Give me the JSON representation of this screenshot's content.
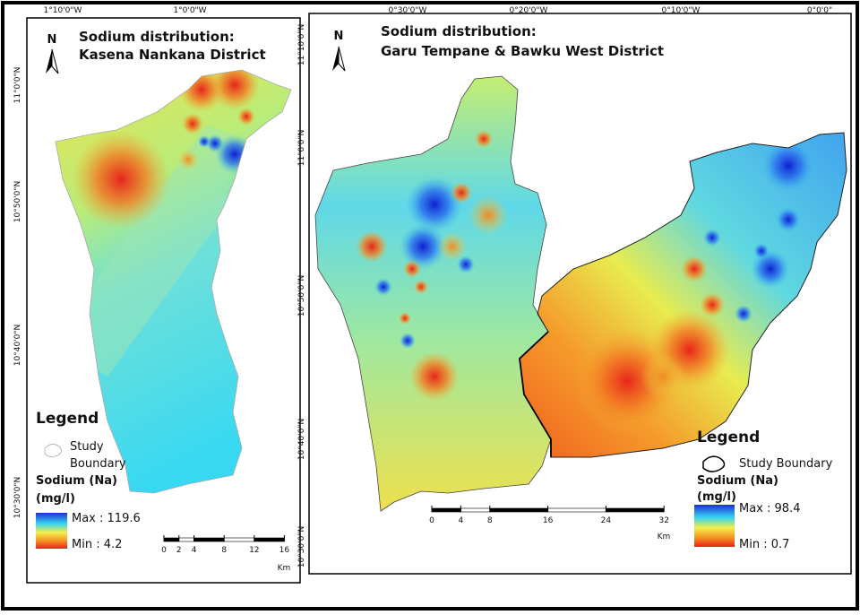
{
  "left_map": {
    "north": "N",
    "title": "Sodium distribution:",
    "subtitle": "Kasena Nankana District",
    "lon_labels": [
      "1°10'0\"W",
      "1°0'0\"W"
    ],
    "lat_labels": [
      "11°0'0\"N",
      "10°50'0\"N",
      "10°40'0\"N",
      "10°30'0\"N"
    ],
    "legend": {
      "title": "Legend",
      "boundary": [
        "Study",
        "Boundary"
      ],
      "variable": "Sodium (Na)",
      "unit": "(mg/l)",
      "max": "Max : 119.6",
      "min": "Min : 4.2"
    },
    "scale": {
      "ticks": [
        0,
        2,
        4,
        8,
        12,
        16
      ],
      "unit": "Km"
    }
  },
  "right_map": {
    "north": "N",
    "title": "Sodium distribution:",
    "subtitle": "Garu Tempane & Bawku West District",
    "lon_labels": [
      "0°30'0\"W",
      "0°20'0\"W",
      "0°10'0\"W",
      "0°0'0\""
    ],
    "lat_labels": [
      "11°10'0\"N",
      "11°0'0\"N",
      "10°50'0\"N",
      "10°40'0\"N",
      "10°30'0\"N"
    ],
    "legend": {
      "title": "Legend",
      "boundary": "Study Boundary",
      "variable": "Sodium (Na)",
      "unit": "(mg/l)",
      "max": "Max : 98.4",
      "min": "Min : 0.7"
    },
    "scale": {
      "ticks": [
        0,
        4,
        8,
        16,
        24,
        32
      ],
      "unit": "Km"
    }
  }
}
